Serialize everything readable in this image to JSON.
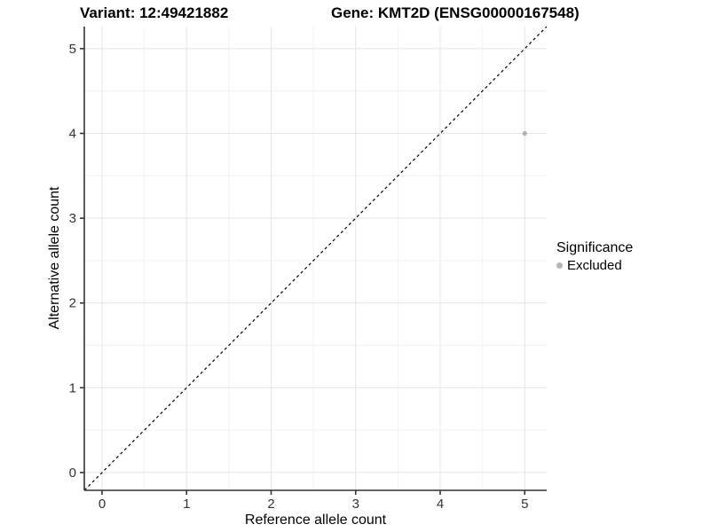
{
  "figure": {
    "title_left": "Variant: 12:49421882",
    "title_right": "Gene: KMT2D (ENSG00000167548)"
  },
  "chart_data": {
    "type": "scatter",
    "title_left": "Variant: 12:49421882",
    "title_right": "Gene: KMT2D (ENSG00000167548)",
    "xlabel": "Reference allele count",
    "ylabel": "Alternative allele count",
    "xlim": [
      -0.21,
      5.26
    ],
    "ylim": [
      -0.21,
      5.26
    ],
    "xticks": [
      0,
      1,
      2,
      3,
      4,
      5
    ],
    "yticks": [
      0,
      1,
      2,
      3,
      4,
      5
    ],
    "minor_grid_positions": [
      0.5,
      1.5,
      2.5,
      3.5,
      4.5
    ],
    "grid": true,
    "identity_line": {
      "from": [
        -0.21,
        -0.21
      ],
      "to": [
        5.26,
        5.26
      ],
      "style": "dashed",
      "color": "#000000"
    },
    "series": [
      {
        "name": "Excluded",
        "color": "#b4b4b4",
        "points": [
          {
            "x": 5,
            "y": 4
          }
        ]
      }
    ],
    "legend": {
      "title": "Significance",
      "position": "right",
      "entries": [
        {
          "label": "Excluded",
          "color": "#b4b4b4"
        }
      ]
    },
    "colors": {
      "axis_line": "#333333",
      "tick_label": "#333333",
      "major_grid": "#e4e4e4",
      "minor_grid": "#f2f2f2",
      "panel_background": "#ffffff"
    }
  }
}
